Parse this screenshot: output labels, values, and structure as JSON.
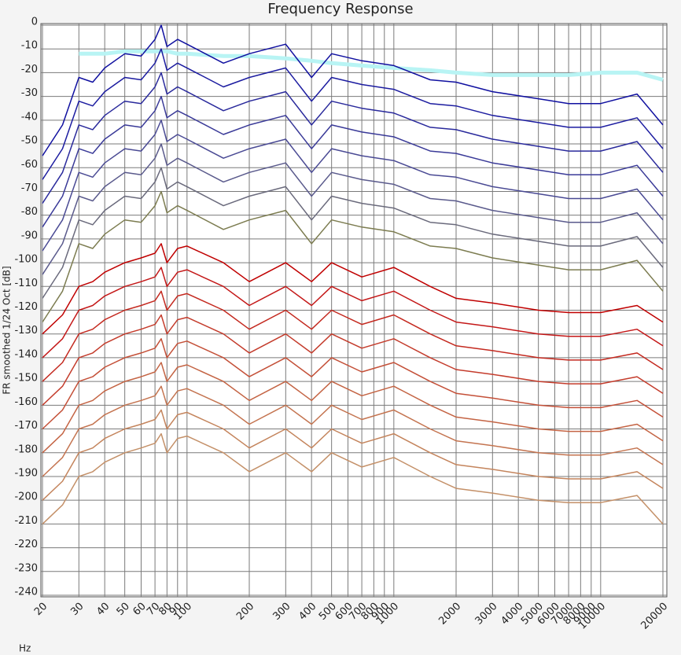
{
  "chart_data": {
    "type": "line",
    "title": "Frequency Response",
    "ylabel": "FR smoothed 1/24 Oct [dB]",
    "xlabel": "Hz",
    "xscale": "log",
    "grid": true,
    "xlim": [
      20,
      20000
    ],
    "ylim": [
      -240,
      0
    ],
    "xticks": [
      20,
      30,
      40,
      50,
      60,
      70,
      80,
      90,
      100,
      200,
      300,
      400,
      500,
      600,
      700,
      800,
      900,
      1000,
      2000,
      3000,
      4000,
      5000,
      6000,
      7000,
      8000,
      9000,
      10000,
      20000
    ],
    "yticks": [
      0,
      -10,
      -20,
      -30,
      -40,
      -50,
      -60,
      -70,
      -80,
      -90,
      -100,
      -110,
      -120,
      -130,
      -140,
      -150,
      -160,
      -170,
      -180,
      -190,
      -200,
      -210,
      -220,
      -230,
      -240
    ],
    "x": [
      20,
      25,
      30,
      35,
      40,
      50,
      60,
      70,
      75,
      80,
      90,
      100,
      150,
      200,
      300,
      400,
      500,
      700,
      1000,
      1500,
      2000,
      3000,
      5000,
      7000,
      10000,
      15000,
      20000
    ],
    "series": [
      {
        "color": "#b8f4f4",
        "width": 5,
        "values": [
          null,
          null,
          -12,
          -12,
          -12,
          -11,
          -11,
          -11,
          -11,
          -11,
          -12,
          -12,
          -13,
          -13,
          -14,
          -15,
          -16,
          -17,
          -18,
          -19,
          -20,
          -21,
          -21,
          -21,
          -20,
          -20,
          -23
        ]
      },
      {
        "color": "#1010a0",
        "values": [
          -55,
          -42,
          -22,
          -24,
          -18,
          -12,
          -13,
          -6,
          0,
          -9,
          -6,
          -8,
          -16,
          -12,
          -8,
          -22,
          -12,
          -15,
          -17,
          -23,
          -24,
          -28,
          -31,
          -33,
          -33,
          -29,
          -42
        ]
      },
      {
        "color": "#1c1ca0",
        "values": [
          -65,
          -52,
          -32,
          -34,
          -28,
          -22,
          -23,
          -16,
          -10,
          -19,
          -16,
          -18,
          -26,
          -22,
          -18,
          -32,
          -22,
          -25,
          -27,
          -33,
          -34,
          -38,
          -41,
          -43,
          -43,
          -39,
          -52
        ]
      },
      {
        "color": "#2a2a9c",
        "values": [
          -75,
          -62,
          -42,
          -44,
          -38,
          -32,
          -33,
          -26,
          -20,
          -29,
          -26,
          -28,
          -36,
          -32,
          -28,
          -42,
          -32,
          -35,
          -37,
          -43,
          -44,
          -48,
          -51,
          -53,
          -53,
          -49,
          -62
        ]
      },
      {
        "color": "#3a3a98",
        "values": [
          -85,
          -72,
          -52,
          -54,
          -48,
          -42,
          -43,
          -36,
          -30,
          -39,
          -36,
          -38,
          -46,
          -42,
          -38,
          -52,
          -42,
          -45,
          -47,
          -53,
          -54,
          -58,
          -61,
          -63,
          -63,
          -59,
          -72
        ]
      },
      {
        "color": "#4a4a94",
        "values": [
          -95,
          -82,
          -62,
          -64,
          -58,
          -52,
          -53,
          -46,
          -40,
          -49,
          -46,
          -48,
          -56,
          -52,
          -48,
          -62,
          -52,
          -55,
          -57,
          -63,
          -64,
          -68,
          -71,
          -73,
          -73,
          -69,
          -82
        ]
      },
      {
        "color": "#5a5a8c",
        "values": [
          -105,
          -92,
          -72,
          -74,
          -68,
          -62,
          -63,
          -56,
          -50,
          -59,
          -56,
          -58,
          -66,
          -62,
          -58,
          -72,
          -62,
          -65,
          -67,
          -73,
          -74,
          -78,
          -81,
          -83,
          -83,
          -79,
          -92
        ]
      },
      {
        "color": "#6a6a7c",
        "values": [
          -115,
          -102,
          -82,
          -84,
          -78,
          -72,
          -73,
          -66,
          -60,
          -69,
          -66,
          -68,
          -76,
          -72,
          -68,
          -82,
          -72,
          -75,
          -77,
          -83,
          -84,
          -88,
          -91,
          -93,
          -93,
          -89,
          -102
        ]
      },
      {
        "color": "#7c7c50",
        "values": [
          -125,
          -112,
          -92,
          -94,
          -88,
          -82,
          -83,
          -76,
          -70,
          -79,
          -76,
          -78,
          -86,
          -82,
          -78,
          -92,
          -82,
          -85,
          -87,
          -93,
          -94,
          -98,
          -101,
          -103,
          -103,
          -99,
          -112
        ]
      },
      {
        "color": "#c00000",
        "values": [
          -130,
          -122,
          -110,
          -108,
          -104,
          -100,
          -98,
          -96,
          -92,
          -100,
          -94,
          -93,
          -100,
          -108,
          -100,
          -108,
          -100,
          -106,
          -102,
          -110,
          -115,
          -117,
          -120,
          -121,
          -121,
          -118,
          -125
        ]
      },
      {
        "color": "#c41818",
        "values": [
          -140,
          -132,
          -120,
          -118,
          -114,
          -110,
          -108,
          -106,
          -102,
          -110,
          -104,
          -103,
          -110,
          -118,
          -110,
          -118,
          -110,
          -116,
          -112,
          -120,
          -125,
          -127,
          -130,
          -131,
          -131,
          -128,
          -135
        ]
      },
      {
        "color": "#c42a20",
        "values": [
          -150,
          -142,
          -130,
          -128,
          -124,
          -120,
          -118,
          -116,
          -112,
          -120,
          -114,
          -113,
          -120,
          -128,
          -120,
          -128,
          -120,
          -126,
          -122,
          -130,
          -135,
          -137,
          -140,
          -141,
          -141,
          -138,
          -145
        ]
      },
      {
        "color": "#c43c2c",
        "values": [
          -160,
          -152,
          -140,
          -138,
          -134,
          -130,
          -128,
          -126,
          -122,
          -130,
          -124,
          -123,
          -130,
          -138,
          -130,
          -138,
          -130,
          -136,
          -132,
          -140,
          -145,
          -147,
          -150,
          -151,
          -151,
          -148,
          -155
        ]
      },
      {
        "color": "#c45038",
        "values": [
          -170,
          -162,
          -150,
          -148,
          -144,
          -140,
          -138,
          -136,
          -132,
          -140,
          -134,
          -133,
          -140,
          -148,
          -140,
          -148,
          -140,
          -146,
          -142,
          -150,
          -155,
          -157,
          -160,
          -161,
          -161,
          -158,
          -165
        ]
      },
      {
        "color": "#c46444",
        "values": [
          -180,
          -172,
          -160,
          -158,
          -154,
          -150,
          -148,
          -146,
          -142,
          -150,
          -144,
          -143,
          -150,
          -158,
          -150,
          -158,
          -150,
          -156,
          -152,
          -160,
          -165,
          -167,
          -170,
          -171,
          -171,
          -168,
          -175
        ]
      },
      {
        "color": "#c47450",
        "values": [
          -190,
          -182,
          -170,
          -168,
          -164,
          -160,
          -158,
          -156,
          -152,
          -160,
          -154,
          -153,
          -160,
          -168,
          -160,
          -168,
          -160,
          -166,
          -162,
          -170,
          -175,
          -177,
          -180,
          -181,
          -181,
          -178,
          -185
        ]
      },
      {
        "color": "#c4845c",
        "values": [
          -200,
          -192,
          -180,
          -178,
          -174,
          -170,
          -168,
          -166,
          -162,
          -170,
          -164,
          -163,
          -170,
          -178,
          -170,
          -178,
          -170,
          -176,
          -172,
          -180,
          -185,
          -187,
          -190,
          -191,
          -191,
          -188,
          -195
        ]
      },
      {
        "color": "#c49068",
        "values": [
          -210,
          -202,
          -190,
          -188,
          -184,
          -180,
          -178,
          -176,
          -172,
          -180,
          -174,
          -173,
          -180,
          -188,
          -180,
          -188,
          -180,
          -186,
          -182,
          -190,
          -195,
          -197,
          -200,
          -201,
          -201,
          -198,
          -210
        ]
      }
    ]
  }
}
